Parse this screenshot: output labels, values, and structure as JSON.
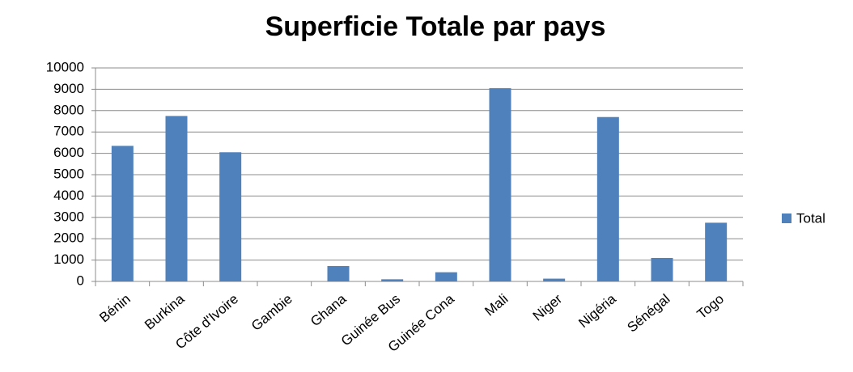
{
  "chart_data": {
    "type": "bar",
    "title": "Superficie Totale par pays",
    "categories": [
      "Bénin",
      "Burkina",
      "Côte d'Ivoire",
      "Gambie",
      "Ghana",
      "Guinée Bus",
      "Guinée Cona",
      "Mali",
      "Niger",
      "Nigéria",
      "Sénégal",
      "Togo"
    ],
    "series": [
      {
        "name": "Total",
        "color": "#4f81bd",
        "values": [
          6350,
          7750,
          6050,
          0,
          720,
          100,
          430,
          9050,
          130,
          7700,
          1100,
          2750
        ]
      }
    ],
    "ylim": [
      0,
      10000
    ],
    "yticks": [
      0,
      1000,
      2000,
      3000,
      4000,
      5000,
      6000,
      7000,
      8000,
      9000,
      10000
    ],
    "grid": true,
    "legend": "right"
  }
}
